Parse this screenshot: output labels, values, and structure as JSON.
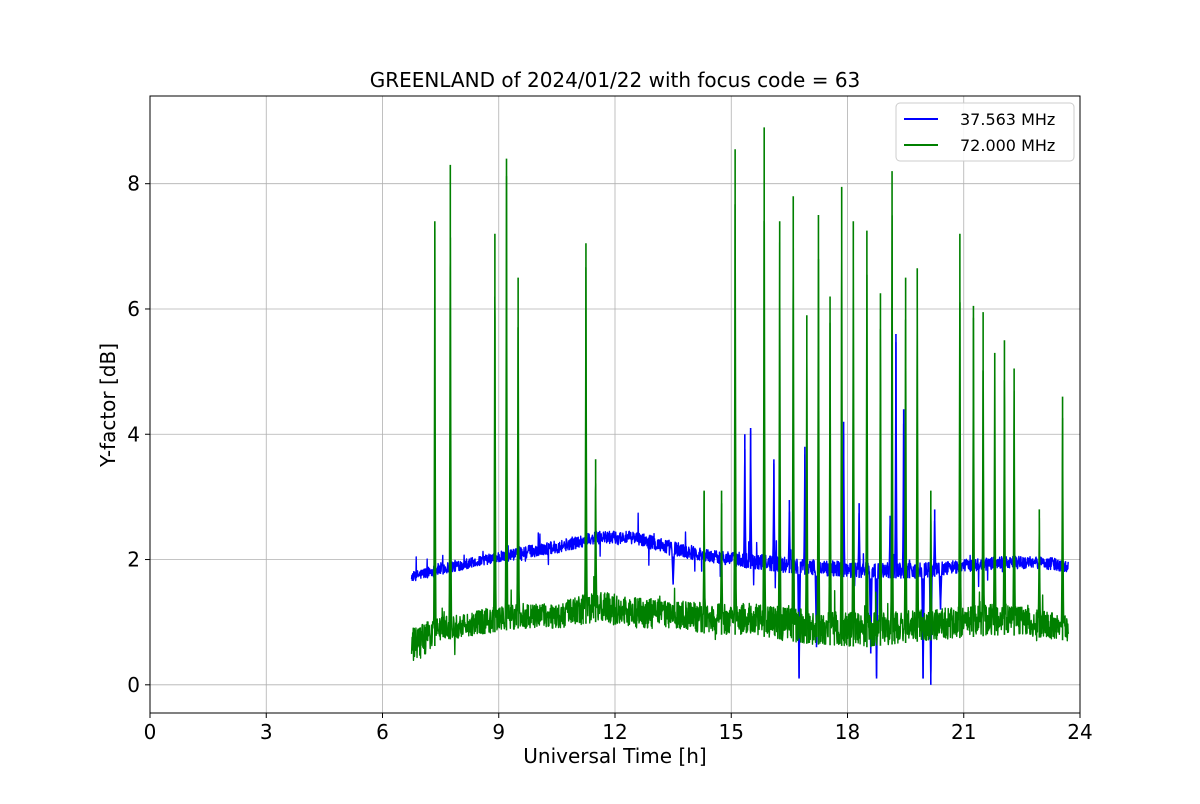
{
  "chart_data": {
    "type": "line",
    "title": "GREENLAND of 2024/01/22 with focus code = 63",
    "xlabel": "Universal Time [h]",
    "ylabel": "Y-factor [dB]",
    "xlim": [
      0,
      24
    ],
    "ylim": [
      -0.45,
      9.4
    ],
    "xticks": [
      0,
      3,
      6,
      9,
      12,
      15,
      18,
      21,
      24
    ],
    "yticks": [
      0,
      2,
      4,
      6,
      8
    ],
    "grid": true,
    "legend_position": "top-right",
    "series": [
      {
        "name": "37.563 MHz",
        "color": "#0000ff",
        "time_range": [
          6.75,
          23.7
        ],
        "baseline_envelope": [
          [
            6.75,
            1.65,
            1.8
          ],
          [
            7.5,
            1.75,
            1.95
          ],
          [
            8.5,
            1.9,
            2.05
          ],
          [
            9.5,
            2.0,
            2.2
          ],
          [
            10.5,
            2.1,
            2.3
          ],
          [
            11.5,
            2.25,
            2.45
          ],
          [
            12.5,
            2.25,
            2.45
          ],
          [
            13.5,
            2.05,
            2.3
          ],
          [
            14.5,
            1.95,
            2.15
          ],
          [
            15.5,
            1.85,
            2.1
          ],
          [
            17.0,
            1.75,
            2.0
          ],
          [
            18.5,
            1.7,
            1.95
          ],
          [
            20.0,
            1.7,
            1.95
          ],
          [
            21.0,
            1.8,
            2.0
          ],
          [
            22.0,
            1.85,
            2.05
          ],
          [
            23.0,
            1.85,
            2.05
          ],
          [
            23.7,
            1.8,
            2.0
          ]
        ],
        "spikes": [
          [
            13.5,
            1.6
          ],
          [
            15.35,
            4.0
          ],
          [
            15.5,
            4.1
          ],
          [
            16.1,
            3.6
          ],
          [
            16.5,
            2.95
          ],
          [
            16.75,
            0.1
          ],
          [
            16.9,
            3.8
          ],
          [
            17.2,
            0.6
          ],
          [
            17.9,
            4.2
          ],
          [
            18.3,
            2.9
          ],
          [
            18.6,
            0.5
          ],
          [
            18.75,
            0.1
          ],
          [
            19.1,
            2.7
          ],
          [
            19.25,
            5.6
          ],
          [
            19.45,
            4.4
          ],
          [
            19.6,
            2.0
          ],
          [
            19.95,
            0.1
          ],
          [
            20.15,
            0.0
          ],
          [
            20.25,
            2.8
          ],
          [
            20.4,
            1.2
          ]
        ]
      },
      {
        "name": "72.000 MHz",
        "color": "#008000",
        "time_range": [
          6.75,
          23.7
        ],
        "baseline_envelope": [
          [
            6.75,
            0.3,
            0.9
          ],
          [
            7.5,
            0.7,
            1.1
          ],
          [
            8.5,
            0.8,
            1.2
          ],
          [
            9.5,
            0.9,
            1.3
          ],
          [
            10.5,
            0.9,
            1.3
          ],
          [
            11.5,
            1.0,
            1.5
          ],
          [
            12.5,
            0.9,
            1.4
          ],
          [
            13.5,
            0.9,
            1.35
          ],
          [
            14.5,
            0.8,
            1.3
          ],
          [
            15.5,
            0.8,
            1.3
          ],
          [
            17.0,
            0.65,
            1.2
          ],
          [
            18.5,
            0.6,
            1.15
          ],
          [
            20.0,
            0.7,
            1.2
          ],
          [
            21.0,
            0.75,
            1.25
          ],
          [
            22.0,
            0.8,
            1.3
          ],
          [
            23.0,
            0.75,
            1.2
          ],
          [
            23.7,
            0.7,
            1.1
          ]
        ],
        "spikes": [
          [
            7.35,
            7.4
          ],
          [
            7.75,
            8.3
          ],
          [
            8.9,
            7.2
          ],
          [
            9.2,
            8.4
          ],
          [
            9.5,
            6.5
          ],
          [
            11.25,
            7.05
          ],
          [
            11.5,
            3.6
          ],
          [
            14.3,
            3.1
          ],
          [
            14.75,
            3.1
          ],
          [
            15.1,
            8.55
          ],
          [
            15.85,
            8.9
          ],
          [
            16.25,
            7.4
          ],
          [
            16.6,
            7.8
          ],
          [
            16.95,
            5.9
          ],
          [
            17.25,
            7.5
          ],
          [
            17.55,
            6.2
          ],
          [
            17.85,
            7.95
          ],
          [
            18.15,
            7.4
          ],
          [
            18.5,
            7.25
          ],
          [
            18.85,
            6.25
          ],
          [
            19.15,
            8.2
          ],
          [
            19.5,
            6.5
          ],
          [
            19.8,
            6.65
          ],
          [
            20.15,
            3.1
          ],
          [
            20.9,
            7.2
          ],
          [
            21.25,
            6.05
          ],
          [
            21.5,
            5.95
          ],
          [
            21.8,
            5.3
          ],
          [
            22.05,
            5.5
          ],
          [
            22.3,
            5.05
          ],
          [
            22.95,
            2.8
          ],
          [
            23.55,
            4.6
          ]
        ]
      }
    ]
  }
}
